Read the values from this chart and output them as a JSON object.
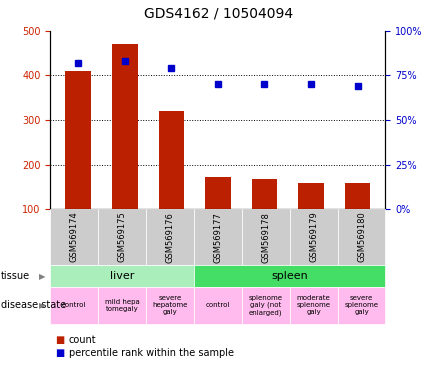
{
  "title": "GDS4162 / 10504094",
  "samples": [
    "GSM569174",
    "GSM569175",
    "GSM569176",
    "GSM569177",
    "GSM569178",
    "GSM569179",
    "GSM569180"
  ],
  "counts": [
    410,
    470,
    320,
    172,
    168,
    158,
    158
  ],
  "percentile_ranks": [
    82,
    83,
    79,
    70,
    70,
    70,
    69
  ],
  "count_min": 100,
  "count_max": 500,
  "percentile_min": 0,
  "percentile_max": 100,
  "count_ticks": [
    100,
    200,
    300,
    400,
    500
  ],
  "percentile_ticks": [
    0,
    25,
    50,
    75,
    100
  ],
  "bar_color": "#bb2000",
  "dot_color": "#0000cc",
  "tissue_groups": [
    {
      "label": "liver",
      "start": 0,
      "end": 3,
      "color": "#aaeebb"
    },
    {
      "label": "spleen",
      "start": 3,
      "end": 7,
      "color": "#44dd66"
    }
  ],
  "disease_states": [
    {
      "label": "control",
      "start": 0,
      "end": 1,
      "color": "#ffbbee"
    },
    {
      "label": "mild hepa\ntomegaly",
      "start": 1,
      "end": 2,
      "color": "#ffbbee"
    },
    {
      "label": "severe\nhepatome\ngaly",
      "start": 2,
      "end": 3,
      "color": "#ffbbee"
    },
    {
      "label": "control",
      "start": 3,
      "end": 4,
      "color": "#ffbbee"
    },
    {
      "label": "splenome\ngaly (not\nenlarged)",
      "start": 4,
      "end": 5,
      "color": "#ffbbee"
    },
    {
      "label": "moderate\nsplenome\ngaly",
      "start": 5,
      "end": 6,
      "color": "#ffbbee"
    },
    {
      "label": "severe\nsplenome\ngaly",
      "start": 6,
      "end": 7,
      "color": "#ffbbee"
    }
  ],
  "left_axis_color": "#cc2200",
  "right_axis_color": "#0000cc",
  "grid_color": "#000000",
  "sample_box_color": "#cccccc",
  "tick_fontsize": 7,
  "title_fontsize": 10,
  "sample_fontsize": 6,
  "tissue_fontsize": 8,
  "disease_fontsize": 5,
  "label_fontsize": 7,
  "legend_fontsize": 7
}
